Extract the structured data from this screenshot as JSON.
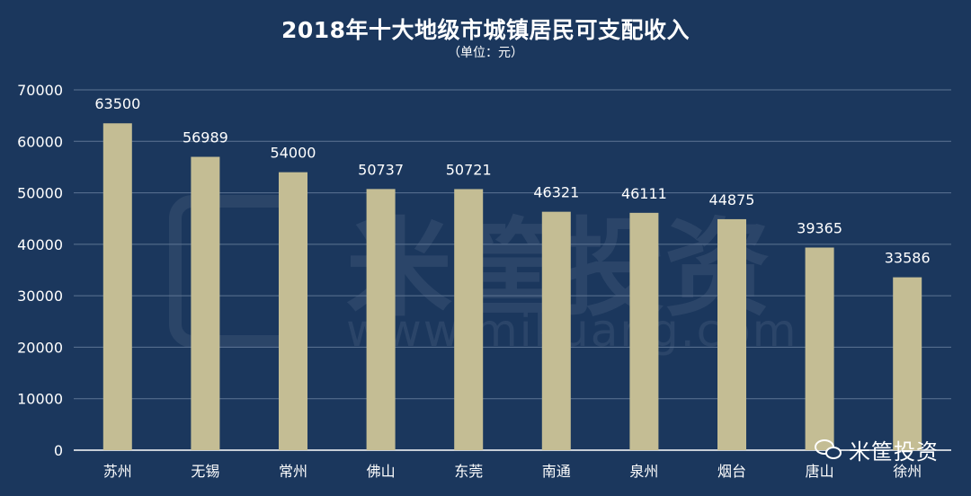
{
  "chart_data": {
    "type": "bar",
    "title": "2018年十大地级市城镇居民可支配收入",
    "subtitle": "（单位：元）",
    "categories": [
      "苏州",
      "无锡",
      "常州",
      "佛山",
      "东莞",
      "南通",
      "泉州",
      "烟台",
      "唐山",
      "徐州"
    ],
    "values": [
      63500,
      56989,
      54000,
      50737,
      50721,
      46321,
      46111,
      44875,
      39365,
      33586
    ],
    "ylim": [
      0,
      70000
    ],
    "yticks": [
      0,
      10000,
      20000,
      30000,
      40000,
      50000,
      60000,
      70000
    ],
    "xlabel": "",
    "ylabel": "",
    "grid": true,
    "legend": "none",
    "colors": {
      "background": "#1b375d",
      "bar": "#c4bd94",
      "grid": "#5c7493",
      "text": "#ffffff"
    }
  },
  "watermark": {
    "text": "米筐投资",
    "url": "www.mikuang.com"
  },
  "brand": {
    "icon": "wechat-icon",
    "text": "米筐投资"
  }
}
